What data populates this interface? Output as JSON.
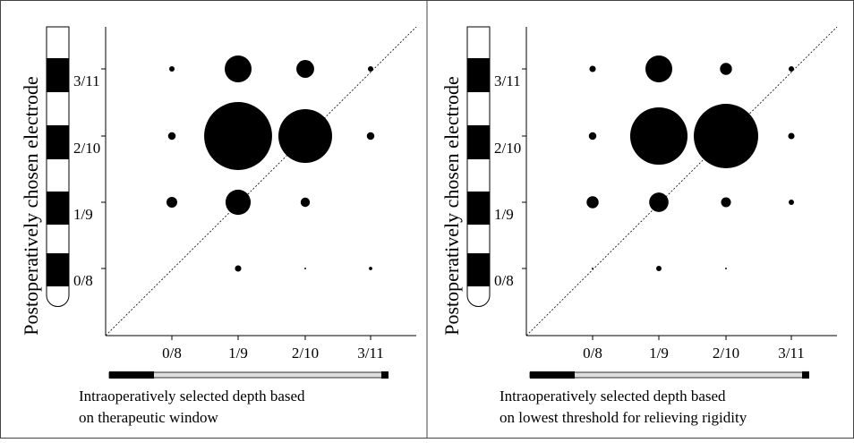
{
  "chart_data": [
    {
      "type": "bubble-grid",
      "x_categories": [
        "0/8",
        "1/9",
        "2/10",
        "3/11"
      ],
      "y_categories": [
        "0/8",
        "1/9",
        "2/10",
        "3/11"
      ],
      "ylabel": "Postoperatively chosen electrode",
      "xlabel": [
        "Intraoperatively selected depth based",
        "on therapeutic window"
      ],
      "color": "#000000",
      "sizes": [
        [
          null,
          1.4,
          0.1,
          0.4
        ],
        [
          4,
          22,
          3,
          null
        ],
        [
          2,
          160,
          100,
          2
        ],
        [
          1,
          25,
          11,
          1
        ]
      ]
    },
    {
      "type": "bubble-grid",
      "x_categories": [
        "0/8",
        "1/9",
        "2/10",
        "3/11"
      ],
      "y_categories": [
        "0/8",
        "1/9",
        "2/10",
        "3/11"
      ],
      "ylabel": "Postoperatively chosen electrode",
      "xlabel": [
        "Intraoperatively selected depth based",
        "on lowest threshold for relieving rigidity"
      ],
      "color": "#000000",
      "sizes": [
        [
          0.1,
          1,
          0.1,
          null
        ],
        [
          5,
          13,
          3.4,
          1
        ],
        [
          2,
          114,
          144,
          1.4
        ],
        [
          1.4,
          25,
          5,
          1
        ]
      ]
    }
  ]
}
